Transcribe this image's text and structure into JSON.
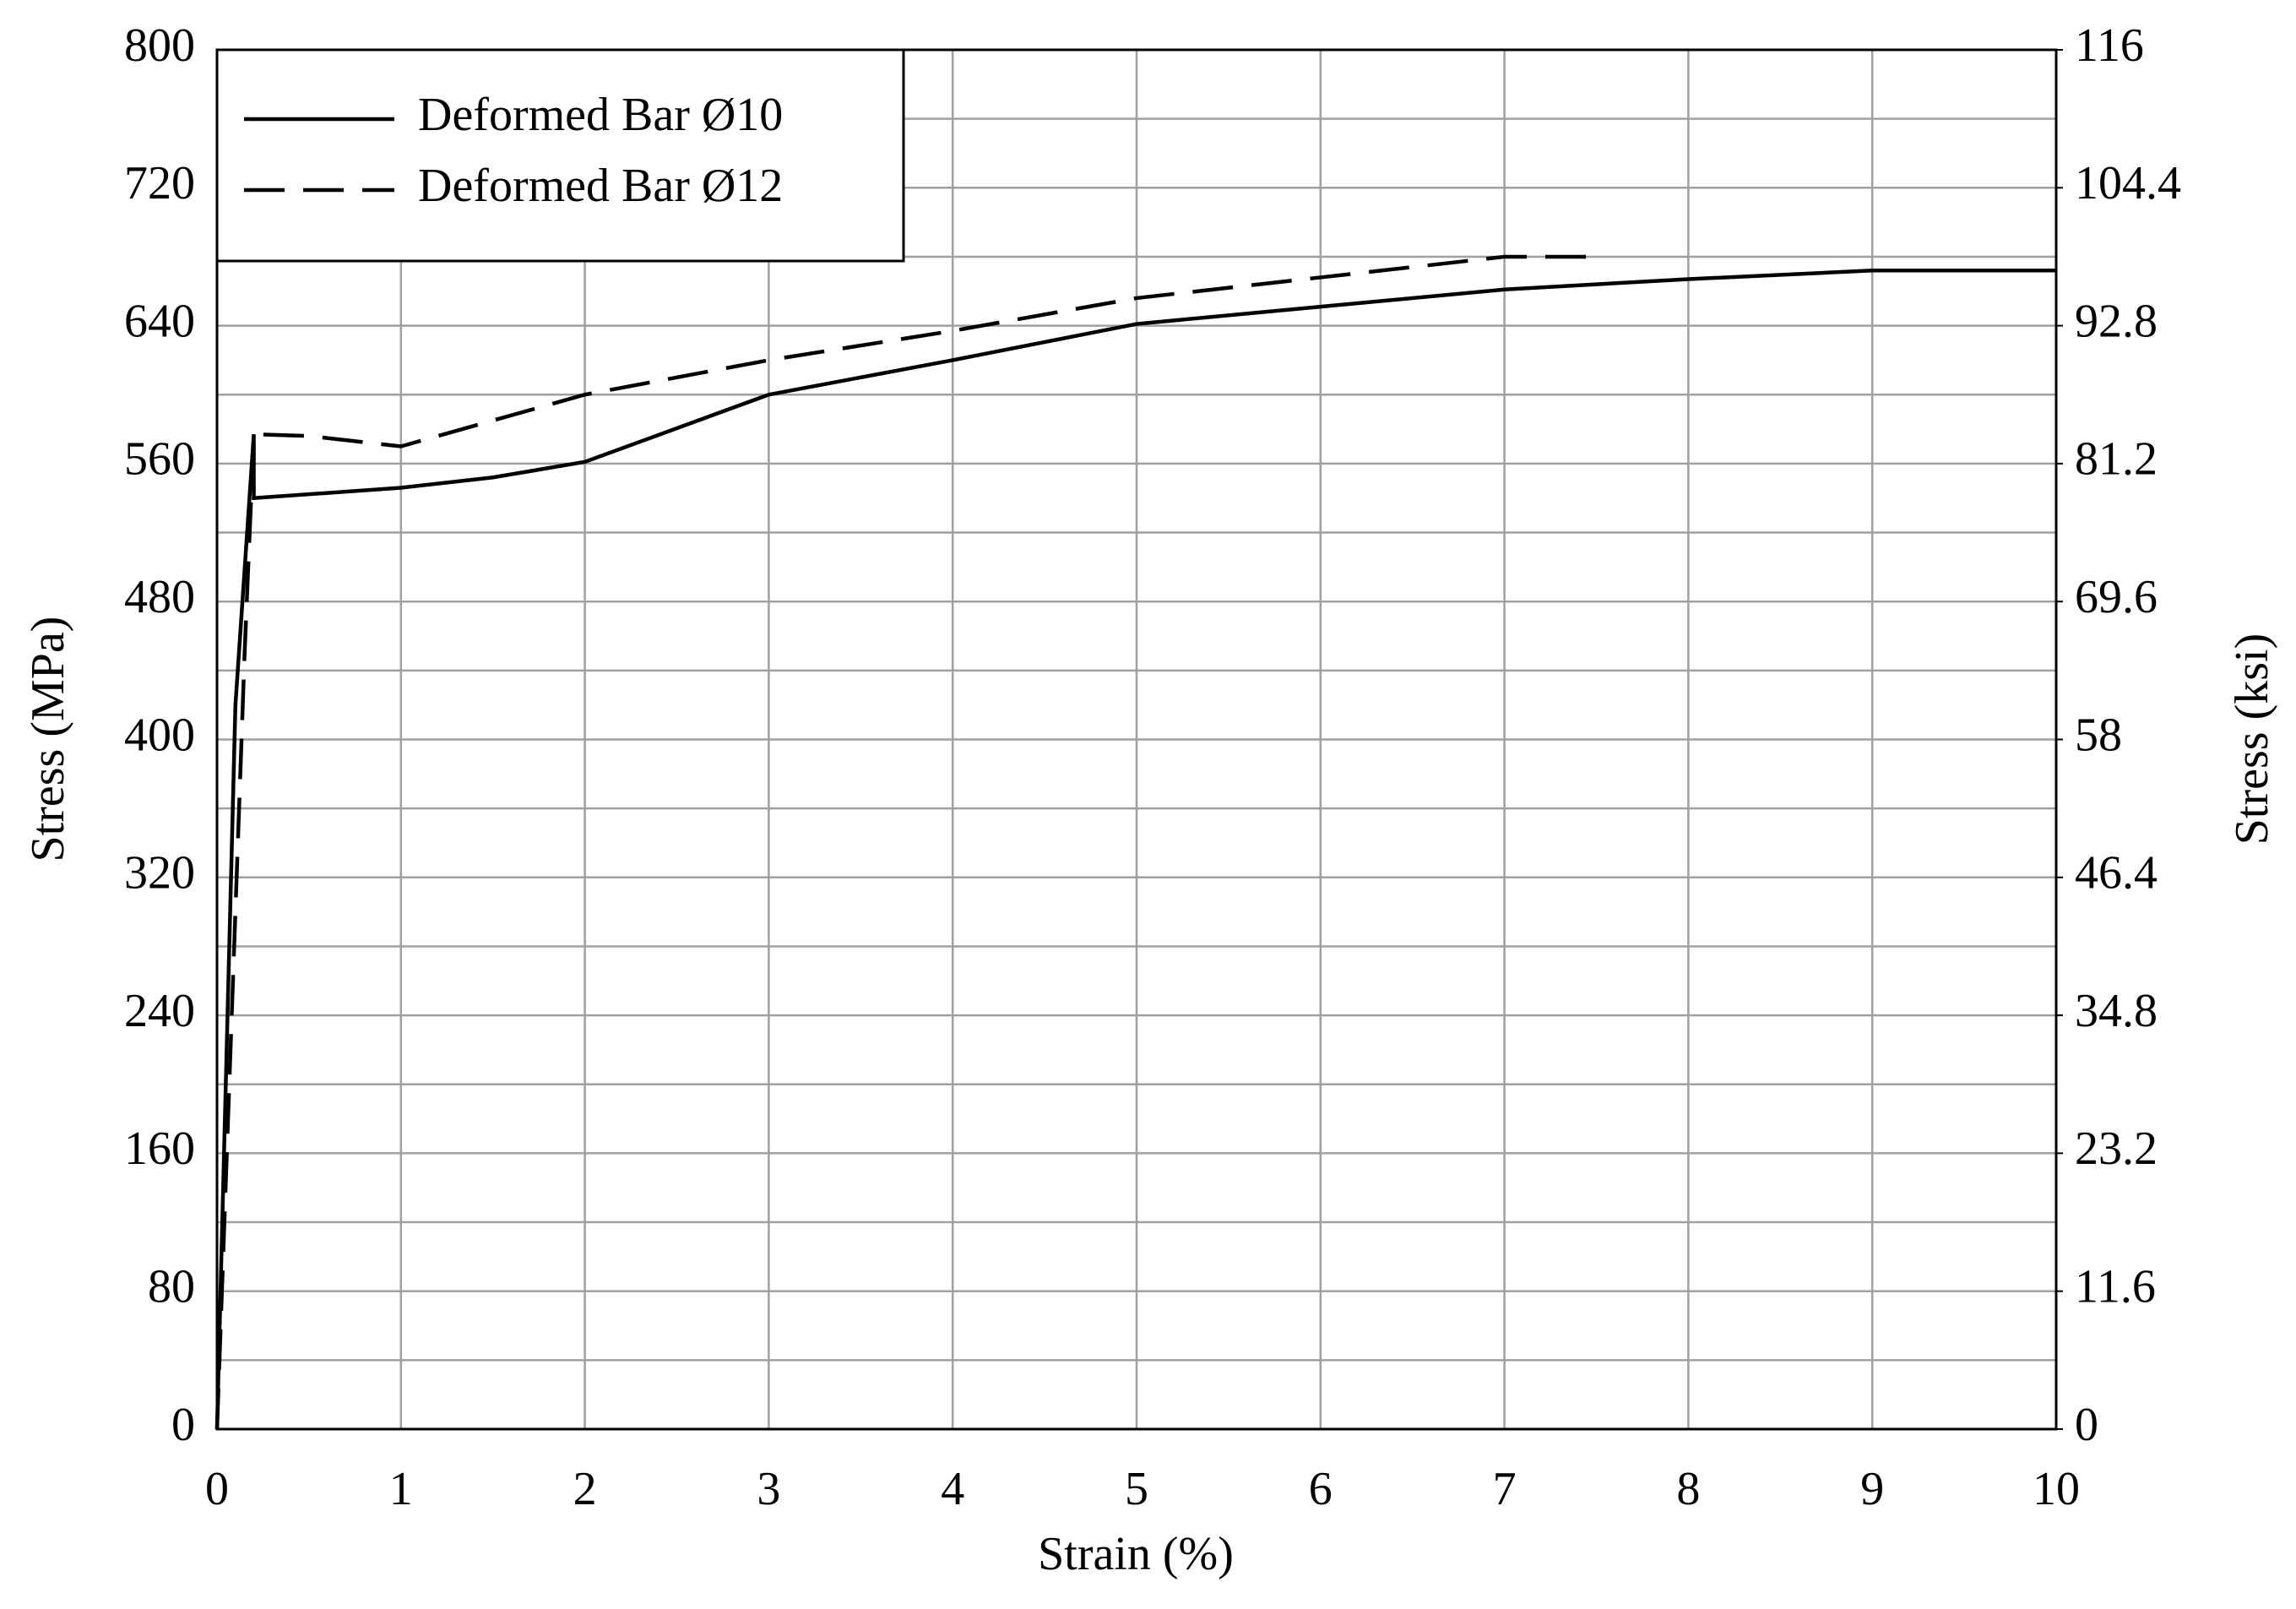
{
  "chart_data": {
    "type": "line",
    "x_label": "Strain (%)",
    "y_label": "Stress (MPa)",
    "y2_label": "Stress (ksi)",
    "xlim": [
      0,
      10
    ],
    "xticks": [
      0,
      1,
      2,
      3,
      4,
      5,
      6,
      7,
      8,
      9,
      10
    ],
    "ylim": [
      0,
      800
    ],
    "yticks": [
      0,
      80,
      160,
      240,
      320,
      400,
      480,
      560,
      640,
      720,
      800
    ],
    "y_minor_grid": [
      40,
      120,
      200,
      280,
      360,
      440,
      520,
      600,
      680,
      760
    ],
    "y2lim": [
      0,
      116
    ],
    "y2ticks": [
      0,
      11.6,
      23.2,
      34.8,
      46.4,
      58,
      69.6,
      81.2,
      92.8,
      104.4,
      116
    ],
    "grid": true,
    "legend": "upper left",
    "series": [
      {
        "name": "Deformed Bar Ø10",
        "color": "#000000",
        "line_style": "solid",
        "x": [
          0,
          0.1,
          0.2,
          0.2,
          1,
          1.5,
          2,
          3,
          4,
          5,
          6,
          7,
          8,
          9,
          10
        ],
        "values": [
          0,
          420,
          577,
          540,
          546,
          552,
          561,
          600,
          620,
          641,
          651,
          661,
          667,
          672,
          672
        ]
      },
      {
        "name": "Deformed Bar Ø12",
        "color": "#000000",
        "line_style": "dashed",
        "x": [
          0,
          0.15,
          0.2,
          0.5,
          1,
          1.5,
          2,
          3,
          4,
          5,
          6,
          7,
          7.45
        ],
        "values": [
          0,
          450,
          577,
          576,
          570,
          585,
          600,
          620,
          637,
          656,
          668,
          680,
          680
        ]
      }
    ]
  }
}
